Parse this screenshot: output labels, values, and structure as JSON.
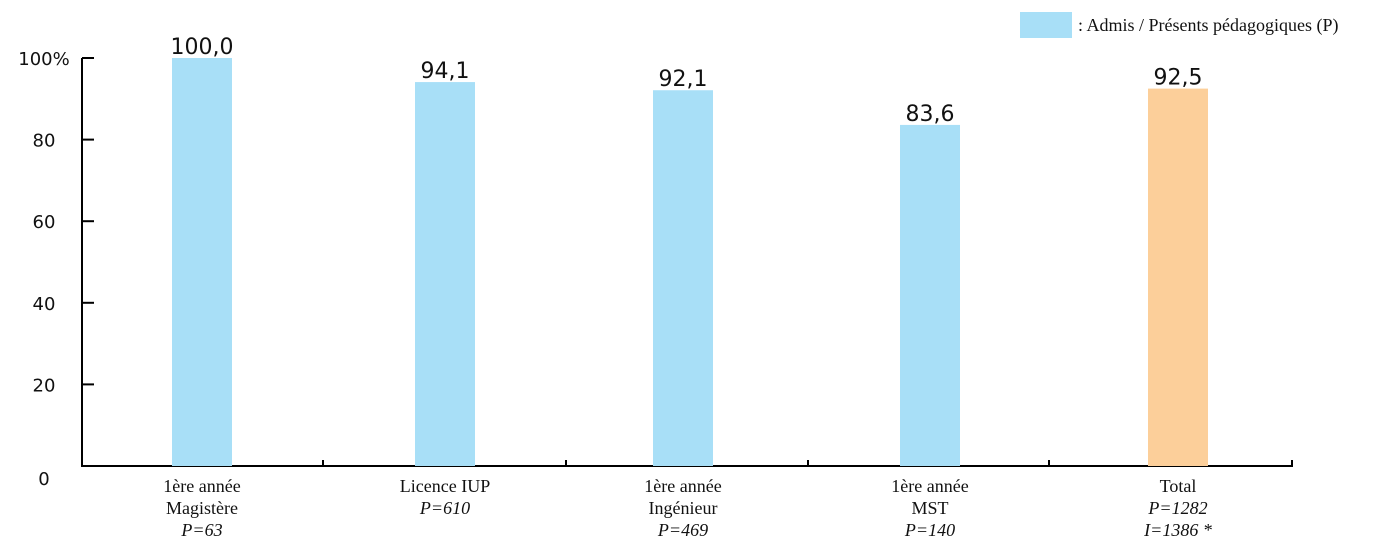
{
  "chart_data": {
    "type": "bar",
    "categories": [
      [
        "1ère année",
        "Magistère"
      ],
      [
        "Licence IUP"
      ],
      [
        "1ère année",
        "Ingénieur"
      ],
      [
        "1ère année",
        "MST"
      ],
      [
        "Total"
      ]
    ],
    "category_notes": [
      [
        "P=63"
      ],
      [
        "P=610"
      ],
      [
        "P=469"
      ],
      [
        "P=140"
      ],
      [
        "P=1282",
        "I=1386 *"
      ]
    ],
    "values": [
      100.0,
      94.1,
      92.1,
      83.6,
      92.5
    ],
    "value_labels": [
      "100,0",
      "94,1",
      "92,1",
      "83,6",
      "92,5"
    ],
    "y_ticks": [
      "0",
      "20",
      "40",
      "60",
      "80",
      "100%"
    ],
    "ylim": [
      0,
      100
    ],
    "bar_colors": [
      "#a8dff7",
      "#a8dff7",
      "#a8dff7",
      "#a8dff7",
      "#fccf9a"
    ],
    "legend": {
      "label": ": Admis / Présents pédagogiques (P)",
      "color": "#a8dff7",
      "position": "top-right"
    },
    "title": "",
    "xlabel": "",
    "ylabel": "",
    "grid": false
  }
}
